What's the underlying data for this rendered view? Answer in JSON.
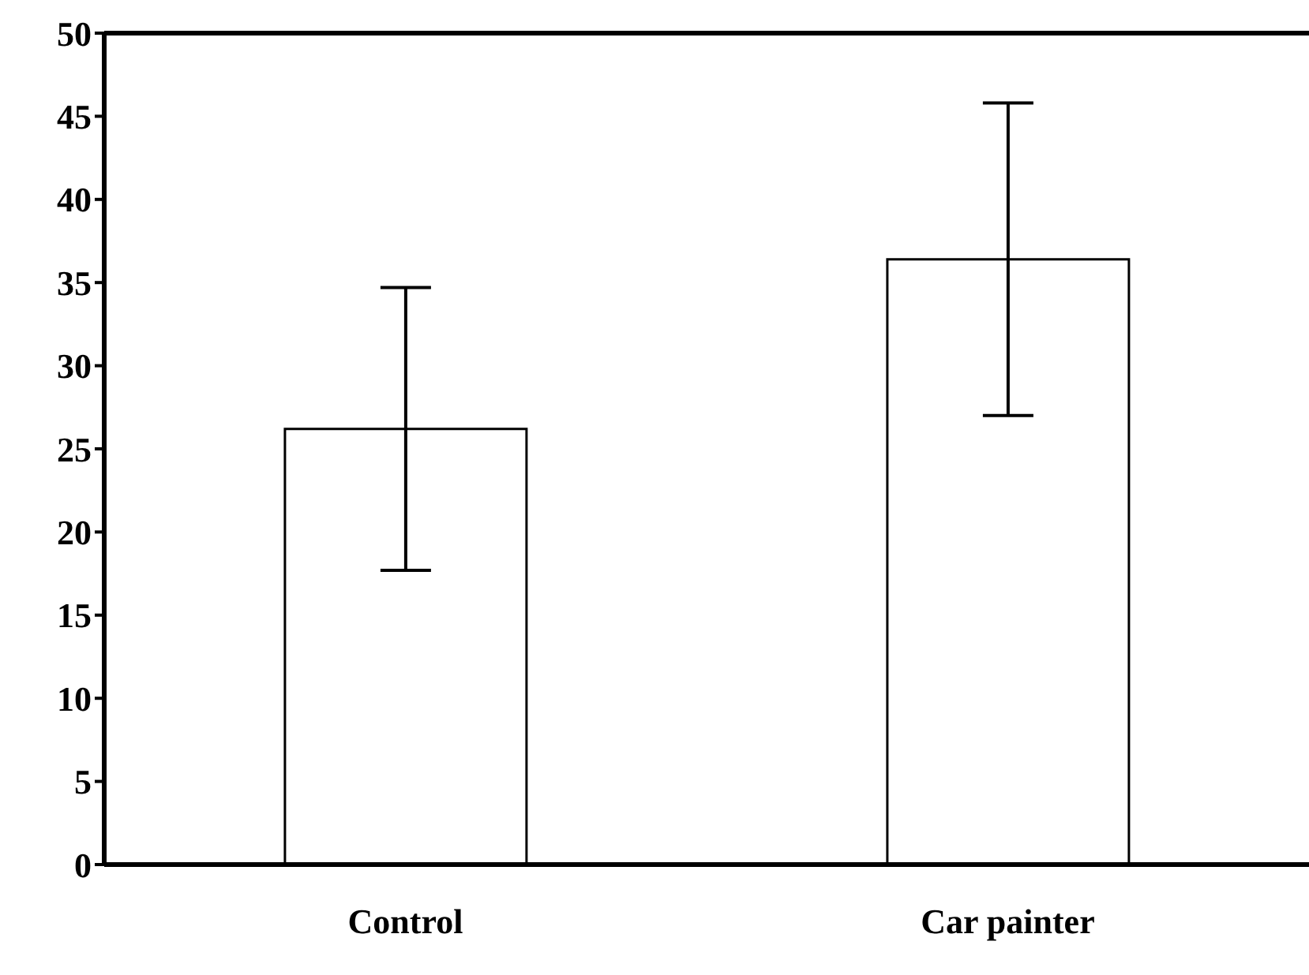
{
  "chart_data": {
    "type": "bar",
    "categories": [
      "Control",
      "Car painter"
    ],
    "values": [
      26.2,
      36.4
    ],
    "errors": [
      8.5,
      9.4
    ],
    "color": "#ffffff",
    "ylim": [
      0,
      50
    ],
    "yticks": [
      0,
      5,
      10,
      15,
      20,
      25,
      30,
      35,
      40,
      45,
      50
    ],
    "grid": false
  }
}
